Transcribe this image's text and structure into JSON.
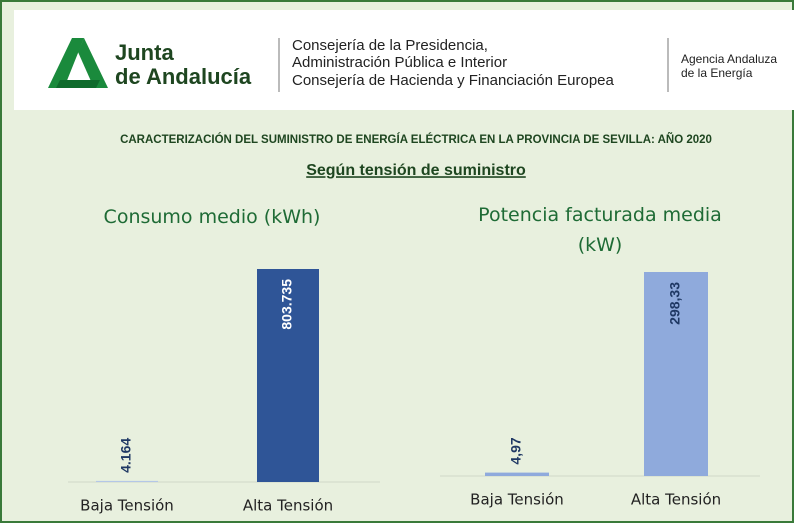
{
  "header": {
    "logo_lines": [
      "Junta",
      "de Andalucía"
    ],
    "department_lines": [
      "Consejería de la Presidencia,",
      "Administración Pública e Interior",
      "Consejería de Hacienda y Financiación Europea"
    ],
    "agency_lines": [
      "Agencia Andaluza",
      "de la Energía"
    ]
  },
  "title": "CARACTERIZACIÓN DEL SUMINISTRO DE ENERGÍA ELÉCTRICA EN LA PROVINCIA DE SEVILLA:  AÑO 2020",
  "subtitle": "Según tensión de suministro",
  "chart_data": [
    {
      "type": "bar",
      "title": "Consumo medio (kWh)",
      "categories": [
        "Baja Tensión",
        "Alta Tensión"
      ],
      "values": [
        4164,
        803735
      ],
      "value_labels": [
        "4.164",
        "803.735"
      ],
      "colors": [
        "#b4c7e7",
        "#2f5597"
      ],
      "value_label_colors": [
        "#1f3864",
        "#ffffff"
      ]
    },
    {
      "type": "bar",
      "title": "Potencia facturada media (kW)",
      "categories": [
        "Baja Tensión",
        "Alta Tensión"
      ],
      "values": [
        4.97,
        298.33
      ],
      "value_labels": [
        "4,97",
        "298,33"
      ],
      "colors": [
        "#8faadc",
        "#8faadc"
      ],
      "value_label_colors": [
        "#1f3864",
        "#1f3864"
      ]
    }
  ]
}
